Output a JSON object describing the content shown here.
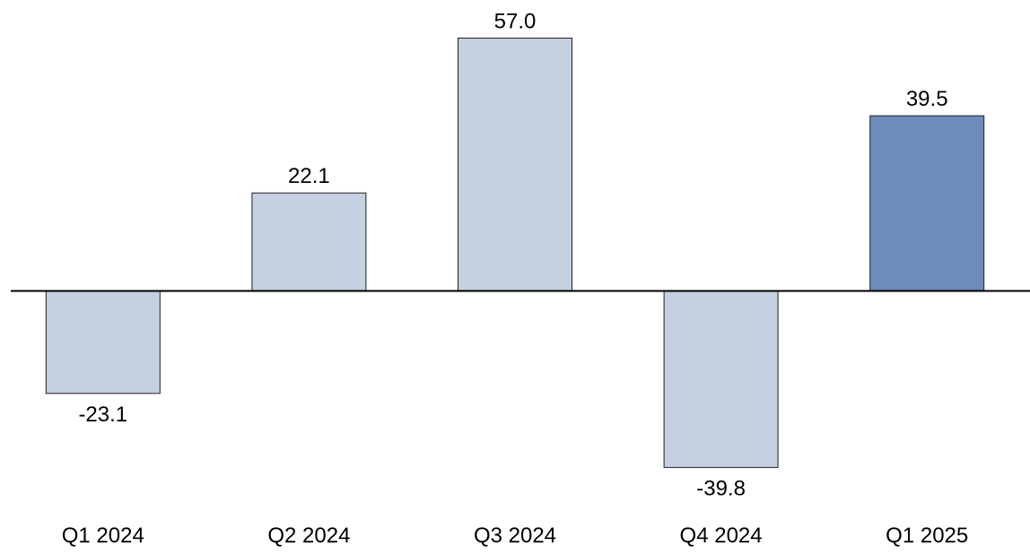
{
  "chart_data": {
    "type": "bar",
    "categories": [
      "Q1 2024",
      "Q2 2024",
      "Q3 2024",
      "Q4 2024",
      "Q1 2025"
    ],
    "values": [
      -23.1,
      22.1,
      57.0,
      -39.8,
      39.5
    ],
    "value_labels": [
      "-23.1",
      "22.1",
      "57.0",
      "-39.8",
      "39.5"
    ],
    "highlight_index": 4,
    "colors": {
      "bar": "#c5d0e1",
      "bar_highlight": "#6d8cbc",
      "bar_stroke": "#222222",
      "axis": "#000000"
    },
    "title": "",
    "xlabel": "",
    "ylabel": "",
    "ylim": [
      -57.0,
      57.0
    ],
    "grid": false,
    "legend": "none"
  }
}
